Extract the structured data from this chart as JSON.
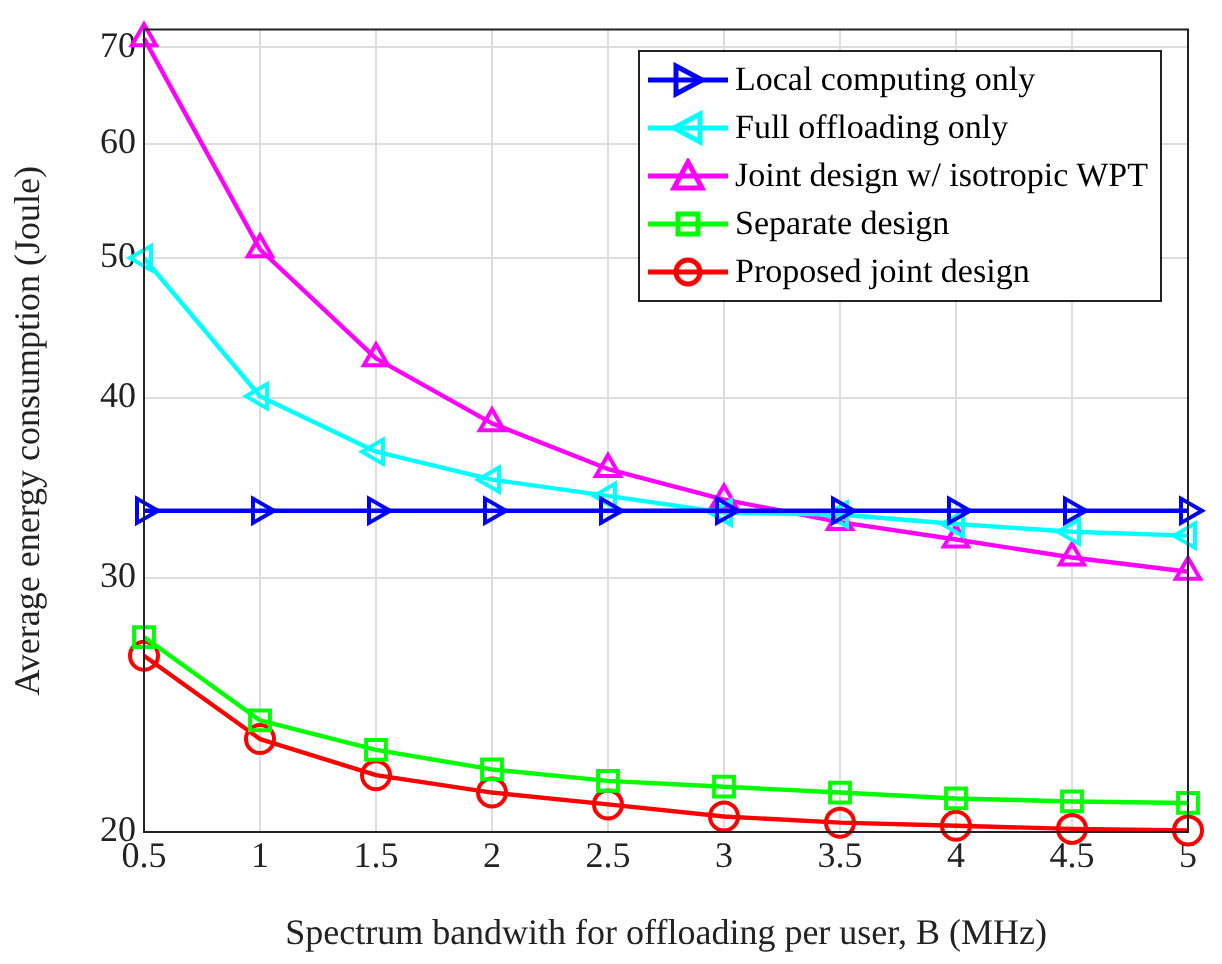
{
  "chart_data": {
    "type": "line",
    "xlabel": "Spectrum bandwith for offloading per user, B (MHz)",
    "ylabel": "Average energy consumption (Joule)",
    "x": [
      0.5,
      1,
      1.5,
      2,
      2.5,
      3,
      3.5,
      4,
      4.5,
      5
    ],
    "series": [
      {
        "name": "Local computing only",
        "color": "#0000ff",
        "marker": "triangle-right",
        "values": [
          33.4,
          33.4,
          33.4,
          33.4,
          33.4,
          33.4,
          33.4,
          33.4,
          33.4,
          33.4
        ]
      },
      {
        "name": "Full offloading only",
        "color": "#00ffff",
        "marker": "triangle-left",
        "values": [
          50.0,
          40.1,
          36.7,
          35.1,
          34.2,
          33.3,
          33.2,
          32.7,
          32.3,
          32.1
        ]
      },
      {
        "name": "Joint design w/ isotropic WPT",
        "color": "#ff00ff",
        "marker": "triangle",
        "values": [
          71,
          50.7,
          42.6,
          38.4,
          35.7,
          34.0,
          32.8,
          31.9,
          31.0,
          30.3
        ]
      },
      {
        "name": "Separate design",
        "color": "#00ff00",
        "marker": "square",
        "values": [
          27.3,
          23.9,
          22.8,
          22.1,
          21.7,
          21.5,
          21.3,
          21.1,
          21.0,
          20.95
        ]
      },
      {
        "name": "Proposed joint design",
        "color": "#ff0000",
        "marker": "circle",
        "values": [
          26.5,
          23.2,
          21.9,
          21.3,
          20.9,
          20.5,
          20.3,
          20.2,
          20.1,
          20.05
        ]
      }
    ],
    "xlim": [
      0.5,
      5
    ],
    "xticks": [
      0.5,
      1,
      1.5,
      2,
      2.5,
      3,
      3.5,
      4,
      4.5,
      5
    ],
    "ylim": [
      20,
      72
    ],
    "yticks": [
      20,
      30,
      40,
      50,
      60,
      70
    ],
    "log": "y",
    "grid": true,
    "legend": "top right",
    "line_style": "solid"
  }
}
